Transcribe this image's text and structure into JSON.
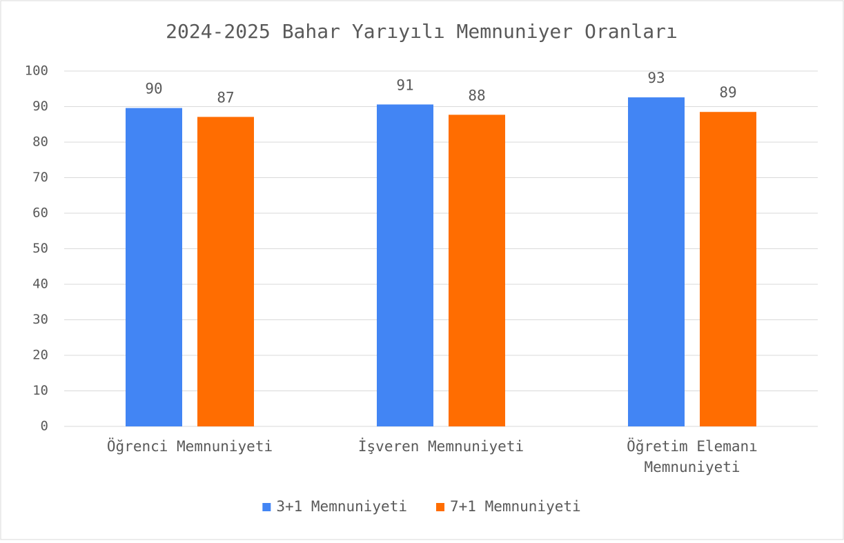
{
  "chart_data": {
    "type": "bar",
    "title": "2024-2025 Bahar Yarıyılı Memnuniyer Oranları",
    "categories": [
      "Öğrenci Memnuniyeti",
      "İşveren Memnuniyeti",
      "Öğretim Elemanı Memnuniyeti"
    ],
    "series": [
      {
        "name": "3+1 Memnuniyeti",
        "color": "#4285f4",
        "values": [
          89.6,
          90.6,
          92.6
        ],
        "value_labels": [
          "90",
          "91",
          "93"
        ]
      },
      {
        "name": "7+1 Memnuniyeti",
        "color": "#ff6d01",
        "values": [
          87.1,
          87.7,
          88.5
        ],
        "value_labels": [
          "87",
          "88",
          "89"
        ]
      }
    ],
    "ylim": [
      0,
      100
    ],
    "yticks": [
      0,
      10,
      20,
      30,
      40,
      50,
      60,
      70,
      80,
      90,
      100
    ],
    "grid": true,
    "legend": "bottom"
  }
}
